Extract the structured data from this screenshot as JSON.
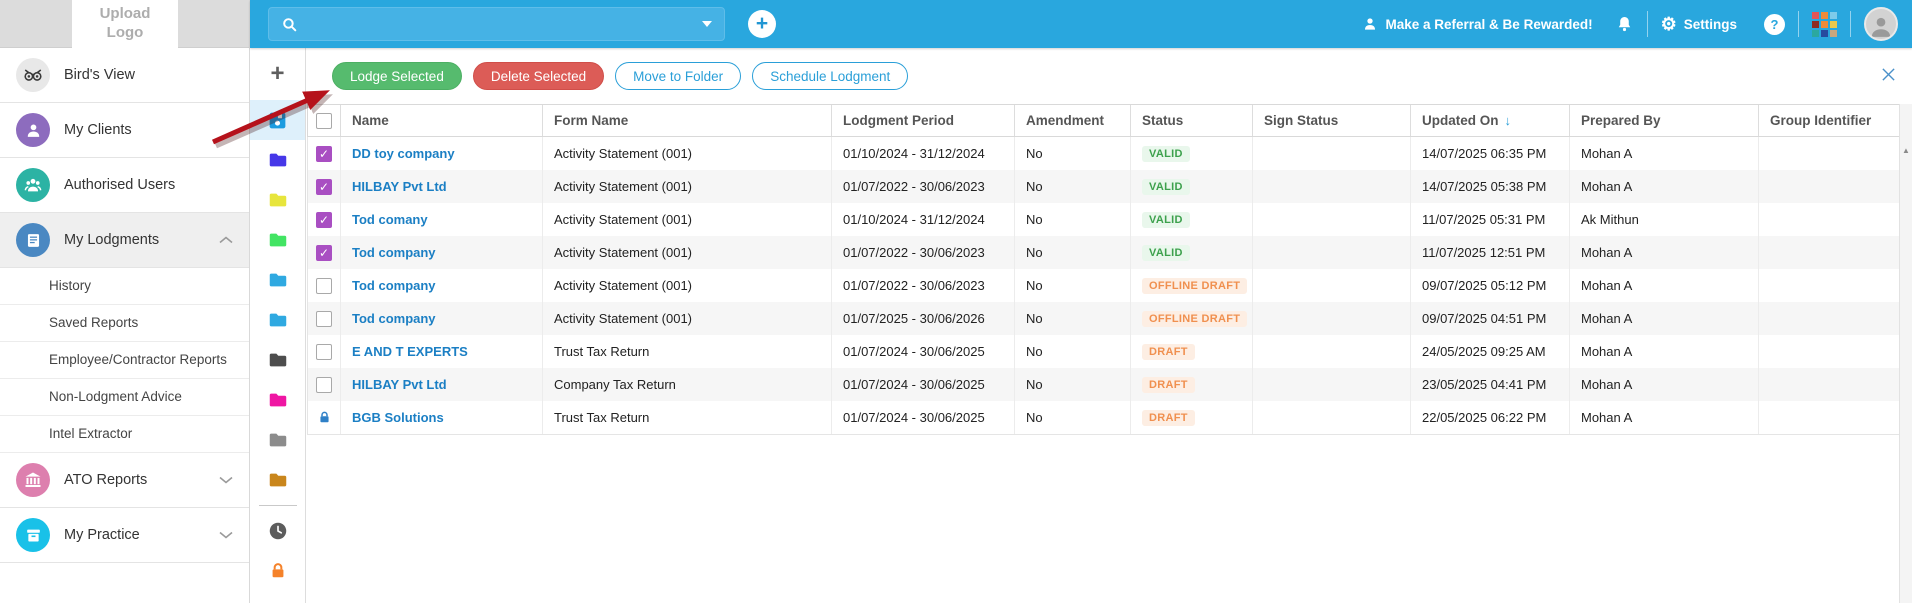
{
  "header": {
    "search_placeholder": "",
    "add_label": "+",
    "referral_label": "Make a Referral & Be Rewarded!",
    "settings_label": "Settings",
    "help_label": "?",
    "app_grid_colors": [
      "#e25555",
      "#ef8b3a",
      "#7ecbea",
      "#8f2a24",
      "#ef8b3a",
      "#ecc94b",
      "#2ba8a0",
      "#274b9f",
      "#c9a77e"
    ]
  },
  "sidebar": {
    "upload_logo_label": "Upload Logo",
    "items": [
      {
        "label": "Bird's View",
        "icon": "owl",
        "color": "#e8e8e8"
      },
      {
        "label": "My Clients",
        "icon": "person",
        "color": "#8d6cbe"
      },
      {
        "label": "Authorised Users",
        "icon": "group",
        "color": "#2cb3a4"
      },
      {
        "label": "My Lodgments",
        "icon": "book",
        "color": "#4a88c2",
        "chevron": "up",
        "selected": true,
        "children": [
          "History",
          "Saved Reports",
          "Employee/Contractor Reports",
          "Non-Lodgment Advice",
          "Intel Extractor"
        ]
      },
      {
        "label": "ATO Reports",
        "icon": "bank",
        "color": "#dd7fae",
        "chevron": "down"
      },
      {
        "label": "My Practice",
        "icon": "box",
        "color": "#19c1e8",
        "chevron": "down"
      }
    ]
  },
  "folder_strip": {
    "add_label": "+",
    "items": [
      {
        "name": "all-lodgments-folder",
        "type": "save",
        "color": "#1b9ce0",
        "selected": true
      },
      {
        "name": "folder-indigo",
        "type": "folder",
        "color": "#4637e8"
      },
      {
        "name": "folder-yellow",
        "type": "folder",
        "color": "#e7e53c"
      },
      {
        "name": "folder-green",
        "type": "folder",
        "color": "#42e463"
      },
      {
        "name": "folder-sky-1",
        "type": "folder",
        "color": "#2fa9e1"
      },
      {
        "name": "folder-sky-2",
        "type": "folder",
        "color": "#2fa9e1"
      },
      {
        "name": "folder-dark-gray",
        "type": "folder",
        "color": "#4d4d4d"
      },
      {
        "name": "folder-pink",
        "type": "folder",
        "color": "#ef16a3"
      },
      {
        "name": "folder-gray",
        "type": "folder",
        "color": "#8c8c8c"
      },
      {
        "name": "folder-amber",
        "type": "folder",
        "color": "#c9861c"
      },
      {
        "name": "strip-divider",
        "type": "divider"
      },
      {
        "name": "recent-lodgments",
        "type": "clock",
        "color": "#5c5c5c"
      },
      {
        "name": "locked-lodgments",
        "type": "lock",
        "color": "#f5822a"
      }
    ]
  },
  "toolbar": {
    "lodge_label": "Lodge Selected",
    "delete_label": "Delete Selected",
    "move_label": "Move to Folder",
    "schedule_label": "Schedule Lodgment"
  },
  "table": {
    "columns": [
      "Name",
      "Form Name",
      "Lodgment Period",
      "Amendment",
      "Status",
      "Sign Status",
      "Updated On",
      "Prepared By",
      "Group Identifier"
    ],
    "sort_column": "Updated On",
    "sort_arrow": "↓",
    "rows": [
      {
        "state": "checked",
        "name": "DD toy company",
        "form": "Activity Statement (001)",
        "period": "01/10/2024 - 31/12/2024",
        "amendment": "No",
        "status": "VALID",
        "status_type": "valid",
        "sign_status": "",
        "updated": "14/07/2025 06:35 PM",
        "prepared_by": "Mohan A",
        "group": ""
      },
      {
        "state": "checked",
        "name": "HILBAY Pvt Ltd",
        "form": "Activity Statement (001)",
        "period": "01/07/2022 - 30/06/2023",
        "amendment": "No",
        "status": "VALID",
        "status_type": "valid",
        "sign_status": "",
        "updated": "14/07/2025 05:38 PM",
        "prepared_by": "Mohan A",
        "group": ""
      },
      {
        "state": "checked",
        "name": "Tod comany",
        "form": "Activity Statement (001)",
        "period": "01/10/2024 - 31/12/2024",
        "amendment": "No",
        "status": "VALID",
        "status_type": "valid",
        "sign_status": "",
        "updated": "11/07/2025 05:31 PM",
        "prepared_by": "Ak Mithun",
        "group": ""
      },
      {
        "state": "checked",
        "name": "Tod company",
        "form": "Activity Statement (001)",
        "period": "01/07/2022 - 30/06/2023",
        "amendment": "No",
        "status": "VALID",
        "status_type": "valid",
        "sign_status": "",
        "updated": "11/07/2025 12:51 PM",
        "prepared_by": "Mohan A",
        "group": ""
      },
      {
        "state": "unchecked",
        "name": "Tod company",
        "form": "Activity Statement (001)",
        "period": "01/07/2022 - 30/06/2023",
        "amendment": "No",
        "status": "OFFLINE DRAFT",
        "status_type": "draft",
        "sign_status": "",
        "updated": "09/07/2025 05:12 PM",
        "prepared_by": "Mohan A",
        "group": ""
      },
      {
        "state": "unchecked",
        "name": "Tod company",
        "form": "Activity Statement (001)",
        "period": "01/07/2025 - 30/06/2026",
        "amendment": "No",
        "status": "OFFLINE DRAFT",
        "status_type": "draft",
        "sign_status": "",
        "updated": "09/07/2025 04:51 PM",
        "prepared_by": "Mohan A",
        "group": ""
      },
      {
        "state": "unchecked",
        "name": "E AND T EXPERTS",
        "form": "Trust Tax Return",
        "period": "01/07/2024 - 30/06/2025",
        "amendment": "No",
        "status": "DRAFT",
        "status_type": "draft",
        "sign_status": "",
        "updated": "24/05/2025 09:25 AM",
        "prepared_by": "Mohan A",
        "group": ""
      },
      {
        "state": "unchecked",
        "name": "HILBAY Pvt Ltd",
        "form": "Company Tax Return",
        "period": "01/07/2024 - 30/06/2025",
        "amendment": "No",
        "status": "DRAFT",
        "status_type": "draft",
        "sign_status": "",
        "updated": "23/05/2025 04:41 PM",
        "prepared_by": "Mohan A",
        "group": ""
      },
      {
        "state": "locked",
        "name": "BGB Solutions",
        "form": "Trust Tax Return",
        "period": "01/07/2024 - 30/06/2025",
        "amendment": "No",
        "status": "DRAFT",
        "status_type": "draft",
        "sign_status": "",
        "updated": "22/05/2025 06:22 PM",
        "prepared_by": "Mohan A",
        "group": ""
      }
    ]
  },
  "scrollbar": {
    "up_arrow": "▲"
  },
  "colors": {
    "header_blue": "#29a7de",
    "link_blue": "#1b7fc4",
    "lodge_green": "#56bb6e",
    "delete_red": "#dc5c57",
    "outline_blue": "#2a9fd8",
    "valid_text": "#3da14d",
    "valid_bg": "#e9f7ec",
    "draft_text": "#f0904f",
    "draft_bg": "#fdeee3",
    "checkbox_purple": "#a94fc2",
    "annotation_arrow_red": "#b5121b"
  }
}
